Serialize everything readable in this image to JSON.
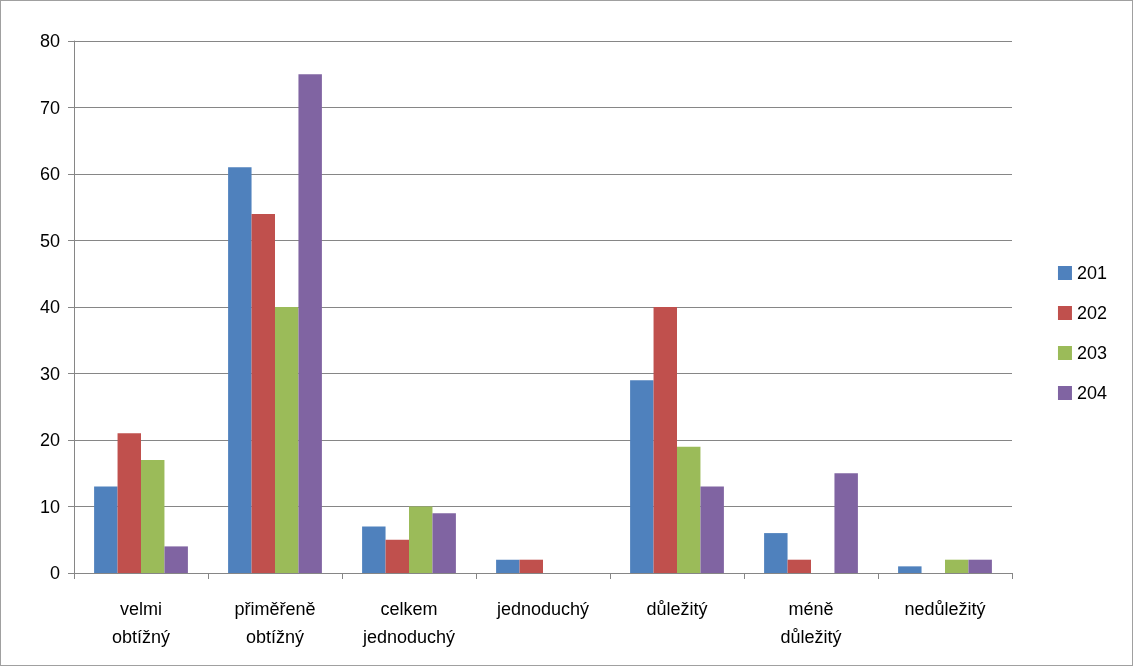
{
  "chart_data": {
    "type": "bar",
    "categories": [
      "velmi obtížný",
      "přiměřeně obtížný",
      "celkem jednoduchý",
      "jednoduchý",
      "důležitý",
      "méně důležitý",
      "nedůležitý"
    ],
    "series": [
      {
        "name": "201",
        "color": "#4f81bd",
        "values": [
          13,
          61,
          7,
          2,
          29,
          6,
          1
        ]
      },
      {
        "name": "202",
        "color": "#c0504d",
        "values": [
          21,
          54,
          5,
          2,
          40,
          2,
          0
        ]
      },
      {
        "name": "203",
        "color": "#9bbb59",
        "values": [
          17,
          40,
          10,
          0,
          19,
          0,
          2
        ]
      },
      {
        "name": "204",
        "color": "#8064a2",
        "values": [
          4,
          75,
          9,
          0,
          13,
          15,
          2
        ]
      }
    ],
    "ylim": [
      0,
      80
    ],
    "yticks": [
      0,
      10,
      20,
      30,
      40,
      50,
      60,
      70,
      80
    ],
    "grid": "y",
    "legend": "right"
  }
}
